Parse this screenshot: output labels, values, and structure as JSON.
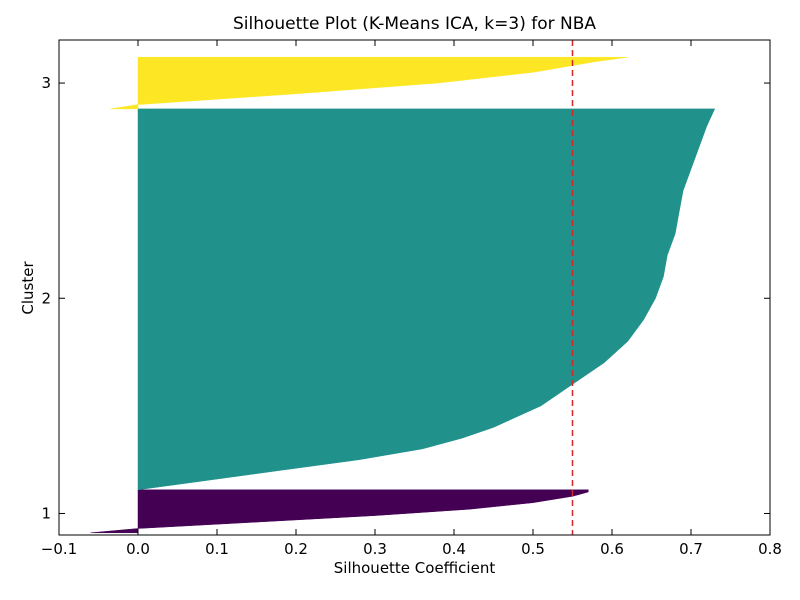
{
  "chart_data": {
    "type": "area",
    "title": "Silhouette Plot (K-Means ICA, k=3) for NBA",
    "xlabel": "Silhouette Coefficient",
    "ylabel": "Cluster",
    "xlim": [
      -0.1,
      0.8
    ],
    "ylim": [
      0.9,
      3.2
    ],
    "xticks": [
      "−0.1",
      "0.0",
      "0.1",
      "0.2",
      "0.3",
      "0.4",
      "0.5",
      "0.6",
      "0.7",
      "0.8"
    ],
    "xtick_values": [
      -0.1,
      0.0,
      0.1,
      0.2,
      0.3,
      0.4,
      0.5,
      0.6,
      0.7,
      0.8
    ],
    "yticks": [
      "1",
      "2",
      "3"
    ],
    "ytick_values": [
      1,
      2,
      3
    ],
    "average_silhouette": 0.55,
    "average_line_color": "#d62728",
    "clusters": [
      {
        "label": "1",
        "color": "#440154",
        "y_range": [
          0.91,
          1.11
        ],
        "profile_y": [
          0.91,
          0.93,
          0.96,
          0.99,
          1.02,
          1.05,
          1.08,
          1.1,
          1.11
        ],
        "profile_x": [
          -0.06,
          0.0,
          0.15,
          0.3,
          0.42,
          0.5,
          0.55,
          0.57,
          0.57
        ]
      },
      {
        "label": "2",
        "color": "#21918c",
        "y_range": [
          1.11,
          2.88
        ],
        "profile_y": [
          1.11,
          1.15,
          1.2,
          1.25,
          1.3,
          1.35,
          1.4,
          1.45,
          1.5,
          1.55,
          1.6,
          1.7,
          1.8,
          1.9,
          2.0,
          2.1,
          2.2,
          2.3,
          2.4,
          2.5,
          2.6,
          2.7,
          2.8,
          2.88
        ],
        "profile_x": [
          0.0,
          0.08,
          0.18,
          0.28,
          0.36,
          0.41,
          0.45,
          0.48,
          0.51,
          0.53,
          0.55,
          0.59,
          0.62,
          0.64,
          0.655,
          0.665,
          0.67,
          0.68,
          0.685,
          0.69,
          0.7,
          0.71,
          0.72,
          0.73
        ]
      },
      {
        "label": "3",
        "color": "#fde725",
        "y_range": [
          2.88,
          3.12
        ],
        "profile_y": [
          2.88,
          2.9,
          2.95,
          3.0,
          3.05,
          3.1,
          3.12
        ],
        "profile_x": [
          -0.035,
          0.0,
          0.2,
          0.38,
          0.5,
          0.58,
          0.62
        ]
      }
    ],
    "grid": false,
    "legend": "none"
  }
}
